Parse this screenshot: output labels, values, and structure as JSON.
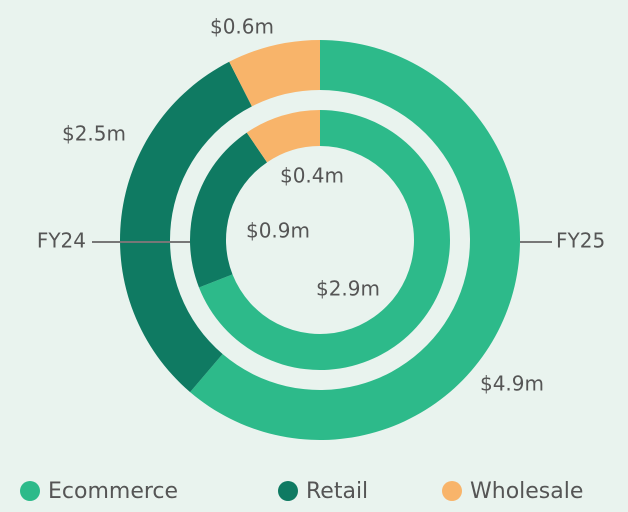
{
  "chart_data": {
    "type": "donut",
    "categories": [
      "Ecommerce",
      "Retail",
      "Wholesale"
    ],
    "colors": [
      "#2dba8a",
      "#0f7a62",
      "#f8b46a"
    ],
    "series": [
      {
        "name": "FY25",
        "values": [
          4.9,
          2.5,
          0.6
        ],
        "value_labels": [
          "$4.9m",
          "$2.5m",
          "$0.6m"
        ]
      },
      {
        "name": "FY24",
        "values": [
          2.9,
          0.9,
          0.4
        ],
        "value_labels": [
          "$2.9m",
          "$0.9m",
          "$0.4m"
        ]
      }
    ]
  }
}
